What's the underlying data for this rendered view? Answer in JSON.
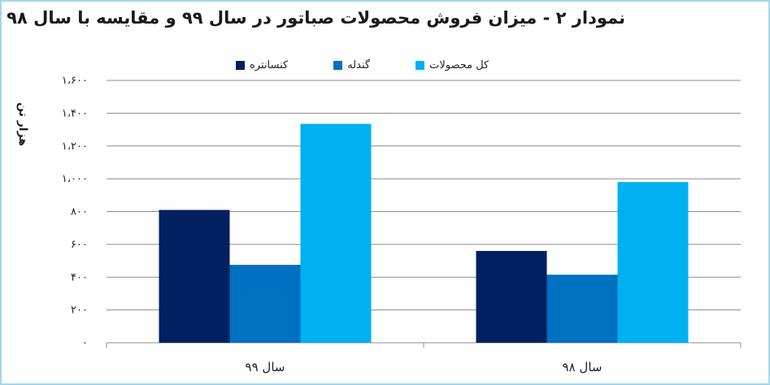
{
  "chart_data": {
    "type": "bar",
    "title": "نمودار ۲ - میزان فروش محصولات صباتور در سال ۹۹ و مقایسه با سال ۹۸",
    "ylabel": "هزار تن",
    "xlabel": "",
    "categories": [
      "سال ۹۹",
      "سال ۹۸"
    ],
    "series": [
      {
        "name": "کنسانتره",
        "color": "#002060",
        "values": [
          810,
          560
        ]
      },
      {
        "name": "گندله",
        "color": "#0070c0",
        "values": [
          475,
          415
        ]
      },
      {
        "name": "کل محصولات",
        "color": "#00b0f0",
        "values": [
          1335,
          980
        ]
      }
    ],
    "ylim": [
      0,
      1600
    ],
    "yticks": [
      0,
      200,
      400,
      600,
      800,
      1000,
      1200,
      1400,
      1600
    ],
    "ytick_labels": [
      "۰",
      "۲۰۰",
      "۴۰۰",
      "۶۰۰",
      "۸۰۰",
      "۱،۰۰۰",
      "۱،۲۰۰",
      "۱،۴۰۰",
      "۱،۶۰۰"
    ],
    "grid": true,
    "legend_position": "top"
  }
}
